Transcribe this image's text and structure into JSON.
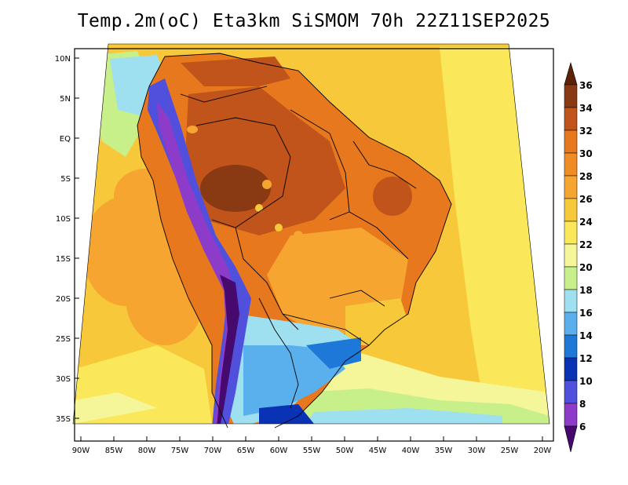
{
  "title": "Temp.2m(oC) Eta3km SiSMOM 70h 22Z11SEP2025",
  "map": {
    "lat_labels": [
      "10N",
      "5N",
      "EQ",
      "5S",
      "10S",
      "15S",
      "20S",
      "25S",
      "30S",
      "35S"
    ],
    "lon_labels": [
      "90W",
      "85W",
      "80W",
      "75W",
      "70W",
      "65W",
      "60W",
      "55W",
      "50W",
      "45W",
      "40W",
      "35W",
      "30W",
      "25W",
      "20W"
    ],
    "lat_range": [
      12,
      -38
    ],
    "lon_range": [
      -91,
      -20
    ],
    "variable": "2m temperature",
    "units": "oC",
    "model": "Eta3km SiSMOM",
    "forecast_hour": "70h",
    "valid_time": "22Z11SEP2025"
  },
  "colorbar": {
    "labels": [
      "36",
      "34",
      "32",
      "30",
      "28",
      "26",
      "24",
      "22",
      "20",
      "18",
      "16",
      "14",
      "12",
      "10",
      "8",
      "6"
    ],
    "colors": [
      "#5c2406",
      "#8a3a12",
      "#c0541a",
      "#e8781e",
      "#f5a530",
      "#f7c93a",
      "#fbe85a",
      "#f5f59a",
      "#c8f08a",
      "#9ee0f0",
      "#5ab0ec",
      "#1e78d8",
      "#0a32b4",
      "#1e1e96",
      "#5050dc",
      "#8c3cc8",
      "#6e1e96",
      "#460a6e"
    ]
  }
}
